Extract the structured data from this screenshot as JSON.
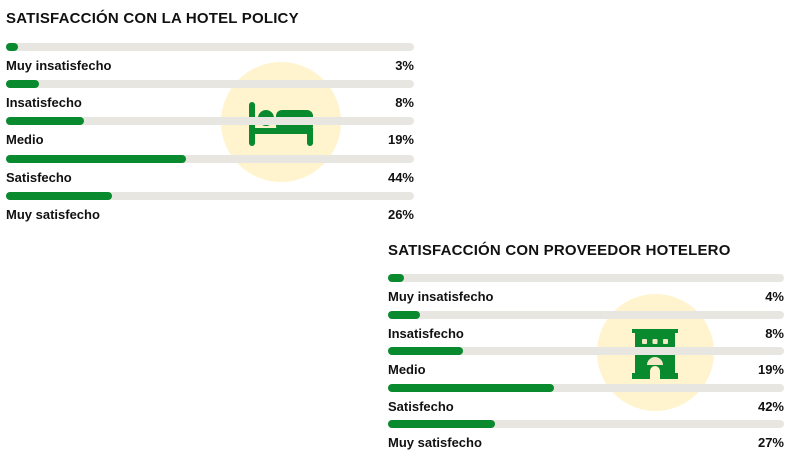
{
  "colors": {
    "bar": "#0a8a2e",
    "track": "#e8e6e1",
    "icon": "#0a8a2e",
    "circle": "#ffe482"
  },
  "chart_data": [
    {
      "type": "bar",
      "orientation": "horizontal",
      "title": "SATISFACCIÓN CON LA HOTEL POLICY",
      "icon": "bed-icon",
      "categories": [
        "Muy insatisfecho",
        "Insatisfecho",
        "Medio",
        "Satisfecho",
        "Muy satisfecho"
      ],
      "values": [
        3,
        8,
        19,
        44,
        26
      ],
      "labels": [
        "3%",
        "8%",
        "19%",
        "44%",
        "26%"
      ],
      "xlim": [
        0,
        100
      ]
    },
    {
      "type": "bar",
      "orientation": "horizontal",
      "title": "SATISFACCIÓN CON PROVEEDOR HOTELERO",
      "icon": "hotel-building-icon",
      "categories": [
        "Muy insatisfecho",
        "Insatisfecho",
        "Medio",
        "Satisfecho",
        "Muy satisfecho"
      ],
      "values": [
        4,
        8,
        19,
        42,
        27
      ],
      "labels": [
        "4%",
        "8%",
        "19%",
        "42%",
        "27%"
      ],
      "xlim": [
        0,
        100
      ]
    }
  ]
}
